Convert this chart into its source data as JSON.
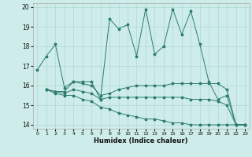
{
  "xlabel": "Humidex (Indice chaleur)",
  "bg_color": "#cdecea",
  "line_color": "#2d7d6e",
  "grid_color": "#b0d8d4",
  "xlim": [
    -0.5,
    23.5
  ],
  "ylim": [
    13.8,
    20.2
  ],
  "yticks": [
    14,
    15,
    16,
    17,
    18,
    19,
    20
  ],
  "xticks": [
    0,
    1,
    2,
    3,
    4,
    5,
    6,
    7,
    8,
    9,
    10,
    11,
    12,
    13,
    14,
    15,
    16,
    17,
    18,
    19,
    20,
    21,
    22,
    23
  ],
  "series": [
    {
      "x": [
        0,
        1,
        2,
        3,
        4,
        5,
        6,
        7,
        8,
        9,
        10,
        11,
        12,
        13,
        14,
        15,
        16,
        17,
        18,
        19,
        20,
        21,
        22,
        23
      ],
      "y": [
        16.8,
        17.5,
        18.1,
        15.9,
        16.2,
        16.2,
        16.2,
        15.3,
        19.4,
        18.9,
        19.1,
        17.5,
        19.9,
        17.6,
        18.0,
        19.9,
        18.6,
        19.8,
        18.1,
        16.2,
        15.3,
        15.5,
        14.0,
        14.0
      ]
    },
    {
      "x": [
        1,
        2,
        3,
        4,
        5,
        6,
        7,
        8,
        9,
        10,
        11,
        12,
        13,
        14,
        15,
        16,
        17,
        18,
        19,
        20,
        21,
        22,
        23
      ],
      "y": [
        15.8,
        15.7,
        15.7,
        16.2,
        16.1,
        16.0,
        15.5,
        15.6,
        15.8,
        15.9,
        16.0,
        16.0,
        16.0,
        16.0,
        16.1,
        16.1,
        16.1,
        16.1,
        16.1,
        16.1,
        15.8,
        14.0,
        14.0
      ]
    },
    {
      "x": [
        1,
        2,
        3,
        4,
        5,
        6,
        7,
        8,
        9,
        10,
        11,
        12,
        13,
        14,
        15,
        16,
        17,
        18,
        19,
        20,
        21,
        22,
        23
      ],
      "y": [
        15.8,
        15.7,
        15.6,
        15.8,
        15.7,
        15.6,
        15.3,
        15.4,
        15.4,
        15.4,
        15.4,
        15.4,
        15.4,
        15.4,
        15.4,
        15.4,
        15.3,
        15.3,
        15.3,
        15.2,
        15.0,
        14.0,
        14.0
      ]
    },
    {
      "x": [
        1,
        2,
        3,
        4,
        5,
        6,
        7,
        8,
        9,
        10,
        11,
        12,
        13,
        14,
        15,
        16,
        17,
        18,
        19,
        20,
        21,
        22,
        23
      ],
      "y": [
        15.8,
        15.6,
        15.5,
        15.5,
        15.3,
        15.2,
        14.9,
        14.8,
        14.6,
        14.5,
        14.4,
        14.3,
        14.3,
        14.2,
        14.1,
        14.1,
        14.0,
        14.0,
        14.0,
        14.0,
        14.0,
        14.0,
        14.0
      ]
    }
  ]
}
